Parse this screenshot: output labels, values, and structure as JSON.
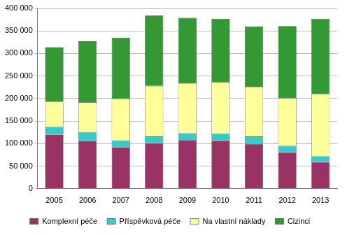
{
  "chart_data": {
    "type": "bar",
    "stacked": true,
    "grid": true,
    "legend": "bottom",
    "categories": [
      "2005",
      "2006",
      "2007",
      "2008",
      "2009",
      "2010",
      "2011",
      "2012",
      "2013"
    ],
    "series": [
      {
        "name": "Komplexní péče",
        "color": "#993366",
        "values": [
          120000,
          106000,
          92000,
          101000,
          108000,
          107000,
          99000,
          81000,
          59000
        ]
      },
      {
        "name": "Příspěvková péče",
        "color": "#33cccc",
        "values": [
          17000,
          19000,
          15000,
          15000,
          15000,
          15000,
          17000,
          14000,
          13000
        ]
      },
      {
        "name": "Na vlastní náklady",
        "color": "#ffff99",
        "values": [
          56000,
          67000,
          93000,
          112000,
          111000,
          115000,
          110000,
          106000,
          138000
        ]
      },
      {
        "name": "Cizinci",
        "color": "#339933",
        "values": [
          121000,
          135000,
          135000,
          156000,
          145000,
          140000,
          134000,
          160000,
          167000
        ]
      }
    ],
    "ylim": [
      0,
      400000
    ],
    "yticks": [
      0,
      {
        "value": 50000,
        "label": "50 000"
      },
      {
        "value": 100000,
        "label": "100 000"
      },
      {
        "value": 150000,
        "label": "150 000"
      },
      {
        "value": 200000,
        "label": "200 000"
      },
      {
        "value": 250000,
        "label": "250 000"
      },
      {
        "value": 300000,
        "label": "300 000"
      },
      {
        "value": 350000,
        "label": "350 000"
      },
      {
        "value": 400000,
        "label": "400 000"
      }
    ]
  }
}
